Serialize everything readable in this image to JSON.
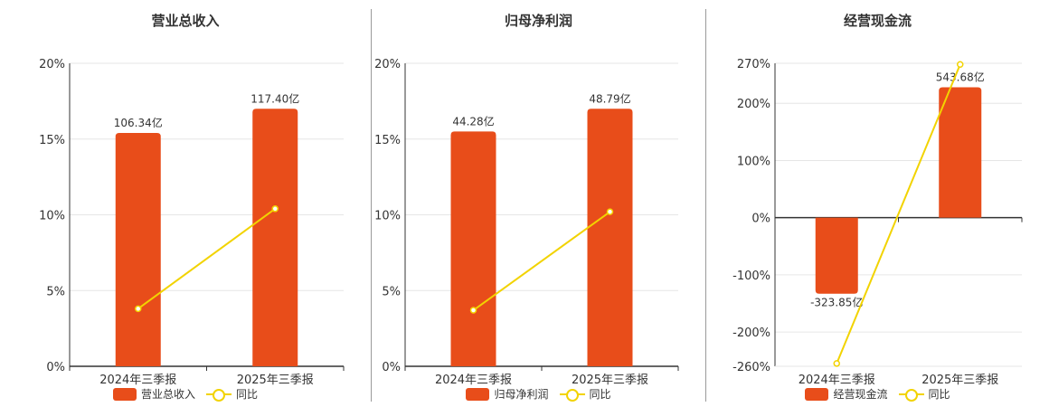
{
  "colors": {
    "bar": "#E84D1A",
    "line": "#F2D300",
    "axis": "#333333",
    "grid": "#e6e6e6",
    "text": "#333333"
  },
  "charts": [
    {
      "title": "营业总收入",
      "legend": {
        "bar": "营业总收入",
        "line": "同比"
      },
      "chart_data": {
        "type": "bar",
        "categories": [
          "2024年三季报",
          "2025年三季报"
        ],
        "series": [
          {
            "name": "营业总收入",
            "type": "bar",
            "values": [
              15.4,
              17.0
            ],
            "labels": [
              "106.34亿",
              "117.40亿"
            ]
          },
          {
            "name": "同比",
            "type": "line",
            "values": [
              3.8,
              10.4
            ]
          }
        ],
        "yticks": [
          "20%",
          "15%",
          "10%",
          "5%",
          "0%"
        ],
        "ylim": [
          0,
          20
        ]
      }
    },
    {
      "title": "归母净利润",
      "legend": {
        "bar": "归母净利润",
        "line": "同比"
      },
      "chart_data": {
        "type": "bar",
        "categories": [
          "2024年三季报",
          "2025年三季报"
        ],
        "series": [
          {
            "name": "归母净利润",
            "type": "bar",
            "values": [
              15.5,
              17.0
            ],
            "labels": [
              "44.28亿",
              "48.79亿"
            ]
          },
          {
            "name": "同比",
            "type": "line",
            "values": [
              3.7,
              10.2
            ]
          }
        ],
        "yticks": [
          "20%",
          "15%",
          "10%",
          "5%",
          "0%"
        ],
        "ylim": [
          0,
          20
        ]
      }
    },
    {
      "title": "经营现金流",
      "legend": {
        "bar": "经营现金流",
        "line": "同比"
      },
      "chart_data": {
        "type": "bar",
        "categories": [
          "2024年三季报",
          "2025年三季报"
        ],
        "series": [
          {
            "name": "经营现金流",
            "type": "bar",
            "values": [
              -133,
              228
            ],
            "labels": [
              "-323.85亿",
              "543.68亿"
            ]
          },
          {
            "name": "同比",
            "type": "line",
            "values": [
              -255,
              268
            ]
          }
        ],
        "yticks": [
          "270%",
          "200%",
          "100%",
          "0%",
          "-100%",
          "-200%",
          "-260%"
        ],
        "ylim": [
          -260,
          270
        ]
      }
    }
  ]
}
